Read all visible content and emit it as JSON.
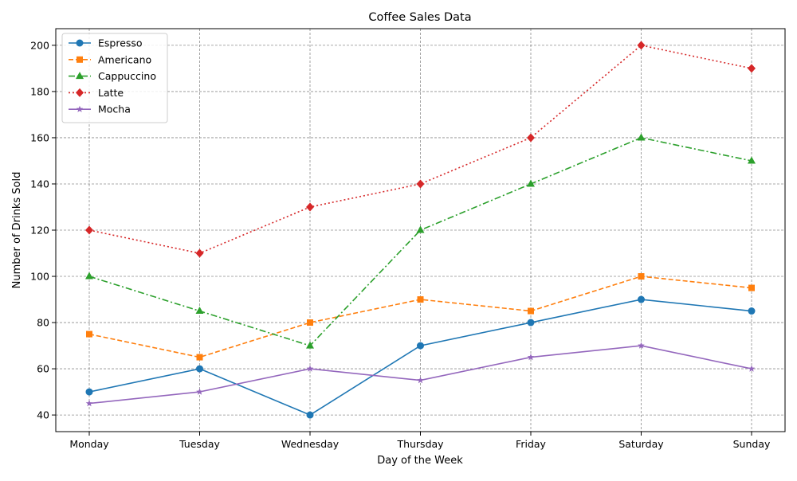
{
  "chart_data": {
    "type": "line",
    "title": "Coffee Sales Data",
    "xlabel": "Day of the Week",
    "ylabel": "Number of Drinks Sold",
    "categories": [
      "Monday",
      "Tuesday",
      "Wednesday",
      "Thursday",
      "Friday",
      "Saturday",
      "Sunday"
    ],
    "ylim": [
      32.8,
      207.2
    ],
    "yticks": [
      40,
      60,
      80,
      100,
      120,
      140,
      160,
      180,
      200
    ],
    "grid": true,
    "grid_style": "dashed",
    "legend_position": "top-left",
    "series": [
      {
        "name": "Espresso",
        "values": [
          50,
          60,
          40,
          70,
          80,
          90,
          85
        ],
        "color": "#1f77b4",
        "linestyle": "solid",
        "marker": "circle"
      },
      {
        "name": "Americano",
        "values": [
          75,
          65,
          80,
          90,
          85,
          100,
          95
        ],
        "color": "#ff7f0e",
        "linestyle": "dashed",
        "marker": "square"
      },
      {
        "name": "Cappuccino",
        "values": [
          100,
          85,
          70,
          120,
          140,
          160,
          150
        ],
        "color": "#2ca02c",
        "linestyle": "dashdot",
        "marker": "triangle"
      },
      {
        "name": "Latte",
        "values": [
          120,
          110,
          130,
          140,
          160,
          200,
          190
        ],
        "color": "#d62728",
        "linestyle": "dotted",
        "marker": "diamond"
      },
      {
        "name": "Mocha",
        "values": [
          45,
          50,
          60,
          55,
          65,
          70,
          60
        ],
        "color": "#9467bd",
        "linestyle": "solid",
        "marker": "star"
      }
    ]
  }
}
